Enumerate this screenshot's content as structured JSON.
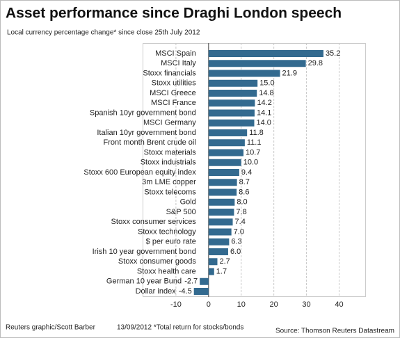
{
  "chart_data": {
    "type": "hbar",
    "title": "Asset performance since Draghi London speech",
    "subtitle": "Local currency percentage change* since close 25th July 2012",
    "credit": "Reuters graphic/Scott Barber",
    "note": "13/09/2012 *Total return for stocks/bonds",
    "source": "Source: Thomson Reuters Datastream",
    "categories": [
      "MSCI Spain",
      "MSCI Italy",
      "Stoxx financials",
      "Stoxx utilities",
      "MSCI Greece",
      "MSCI France",
      "Spanish 10yr government bond",
      "MSCI Germany",
      "Italian 10yr government bond",
      "Front month Brent crude oil",
      "Stoxx materials",
      "Stoxx industrials",
      "Stoxx 600 European equity index",
      "3m LME copper",
      "Stoxx telecoms",
      "Gold",
      "S&P 500",
      "Stoxx consumer services",
      "Stoxx technology",
      "$ per euro rate",
      "Irish 10 year government bond",
      "Stoxx consumer goods",
      "Stoxx health care",
      "German 10 year Bund",
      "Dollar index"
    ],
    "values": [
      35.2,
      29.8,
      21.9,
      15.0,
      14.8,
      14.2,
      14.1,
      14.0,
      11.8,
      11.1,
      10.7,
      10.0,
      9.4,
      8.7,
      8.6,
      8.0,
      7.8,
      7.4,
      7.0,
      6.3,
      6.0,
      2.7,
      1.7,
      -2.7,
      -4.5
    ],
    "value_labels": [
      "35.2",
      "29.8",
      "21.9",
      "15.0",
      "14.8",
      "14.2",
      "14.1",
      "14.0",
      "11.8",
      "11.1",
      "10.7",
      "10.0",
      "9.4",
      "8.7",
      "8.6",
      "8.0",
      "7.8",
      "7.4",
      "7.0",
      "6.3",
      "6.0",
      "2.7",
      "1.7",
      "-2.7",
      "-4.5"
    ],
    "color": "#336a8f",
    "xlim": [
      -20,
      48
    ],
    "xticks": [
      -10,
      0,
      10,
      20,
      30,
      40
    ],
    "grid": true
  }
}
